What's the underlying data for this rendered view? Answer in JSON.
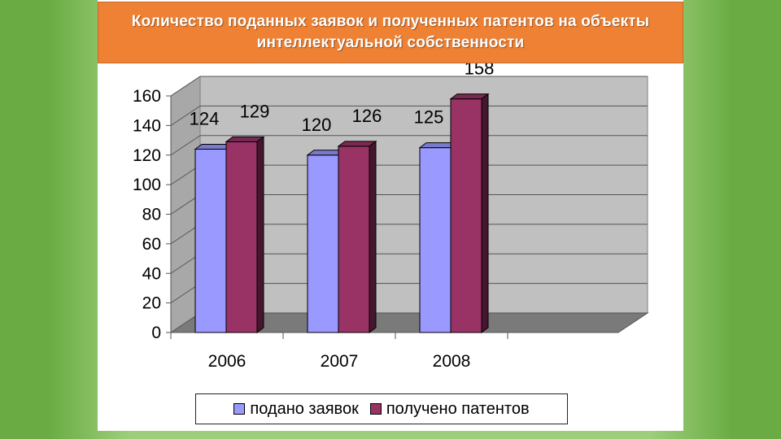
{
  "chart_data": {
    "type": "bar",
    "title": "Количество поданных заявок и полученных патентов на объекты интеллектуальной собственности",
    "categories": [
      "2006",
      "2007",
      "2008"
    ],
    "series": [
      {
        "name": "подано заявок",
        "values": [
          124,
          120,
          125
        ],
        "color": "#9999ff"
      },
      {
        "name": "получено патентов",
        "values": [
          129,
          126,
          158
        ],
        "color": "#993366"
      }
    ],
    "ylim": [
      0,
      160
    ],
    "yticks": [
      0,
      20,
      40,
      60,
      80,
      100,
      120,
      140,
      160
    ],
    "grid": true,
    "three_d": true,
    "legend_position": "bottom"
  }
}
